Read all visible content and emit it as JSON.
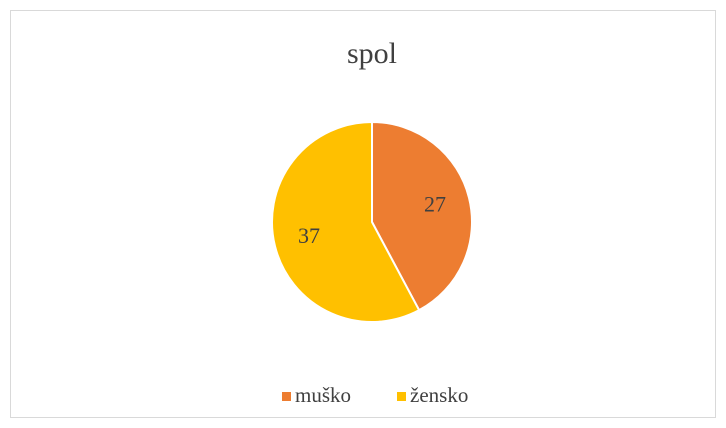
{
  "chart_data": {
    "type": "pie",
    "title": "spol",
    "categories": [
      "muško",
      "žensko"
    ],
    "values": [
      27,
      37
    ],
    "colors": [
      "#ED7D31",
      "#FFC000"
    ],
    "legend": "bottom"
  }
}
